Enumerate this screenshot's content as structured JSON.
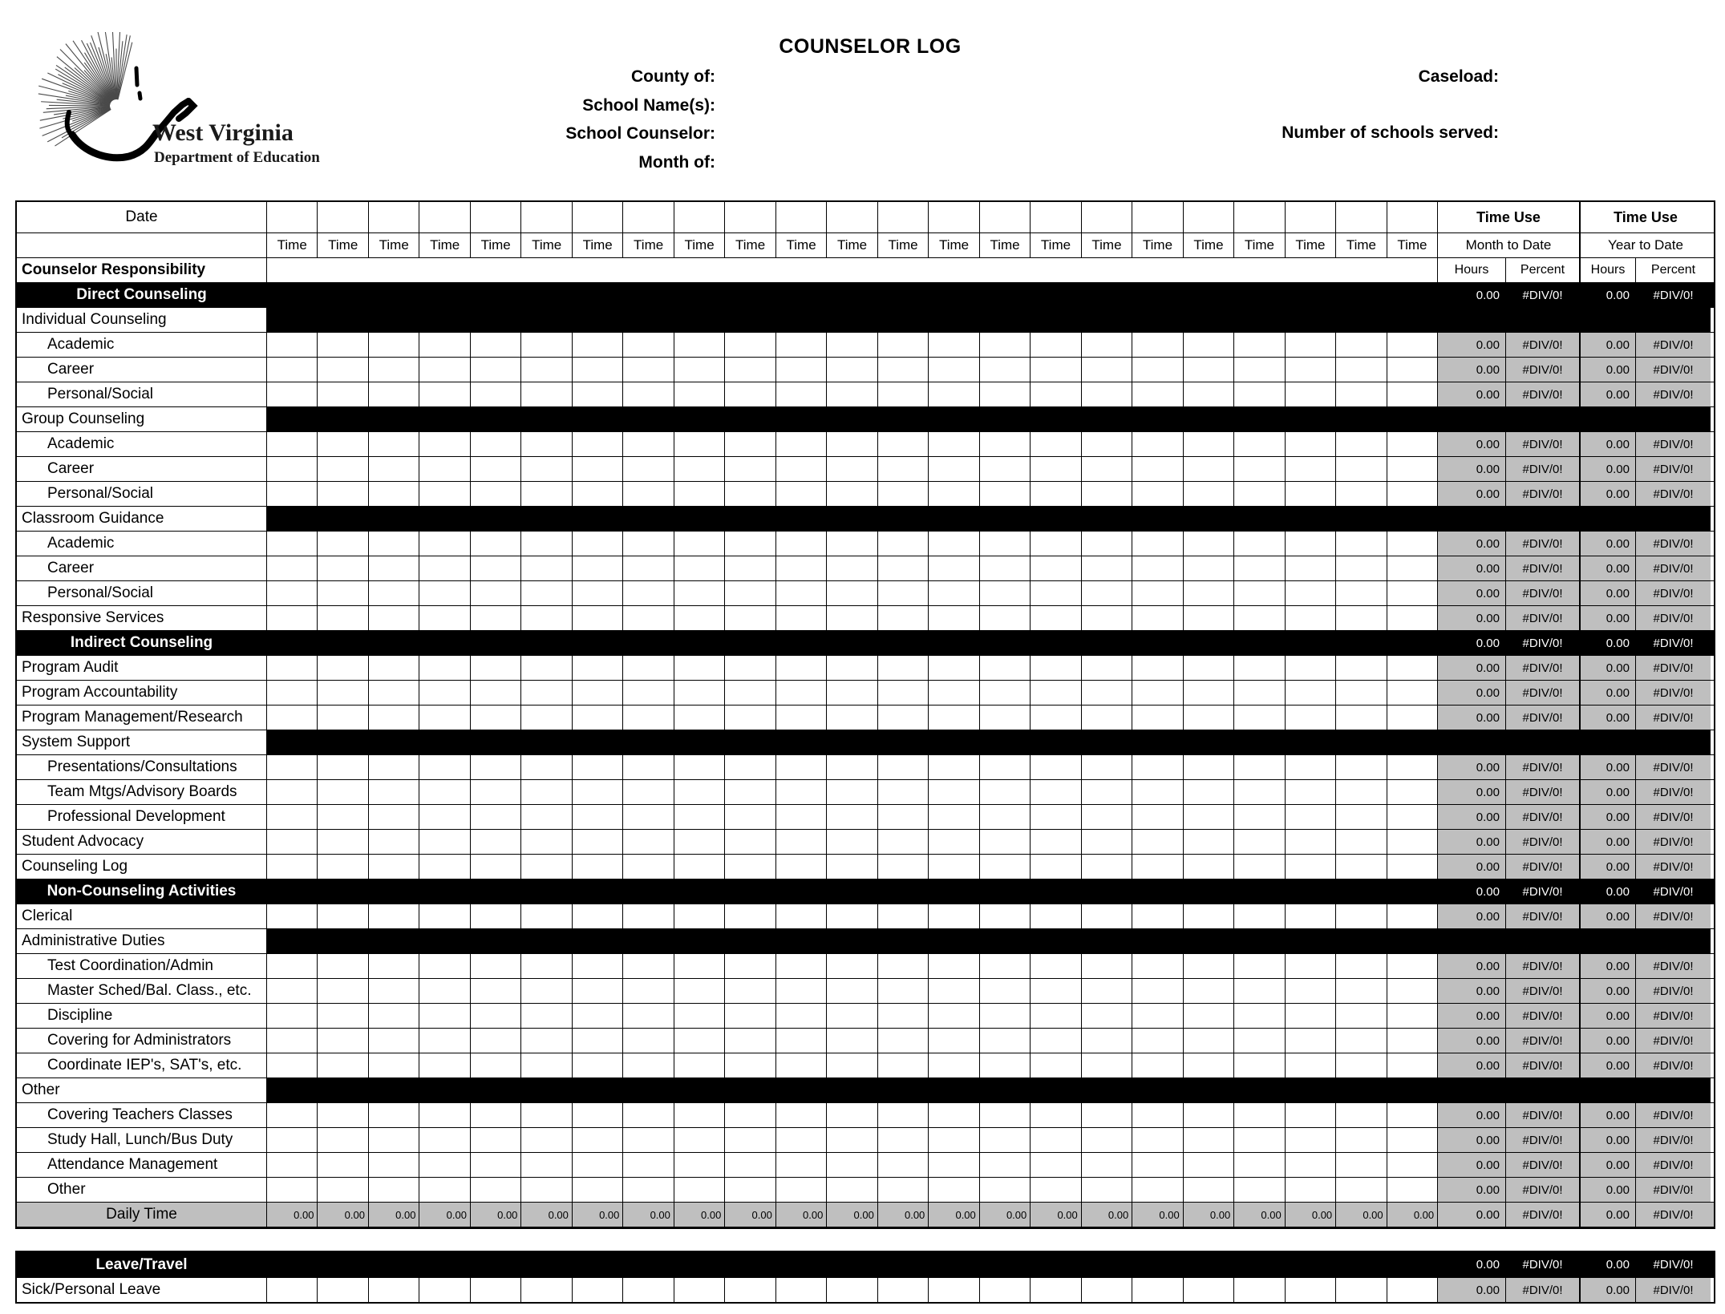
{
  "page": {
    "title": "COUNSELOR LOG",
    "logo": {
      "region": "West Virginia",
      "org": "Department of Education"
    },
    "fields_left": [
      "County of:",
      "School Name(s):",
      "School Counselor:",
      "Month of:"
    ],
    "fields_right": [
      "Caseload:",
      "Number of schools served:"
    ]
  },
  "table": {
    "columns": {
      "date_label": "Date",
      "time_label": "Time",
      "time_column_count": 23
    },
    "time_use": {
      "title": "Time Use",
      "mtd": "Month to Date",
      "ytd": "Year to Date",
      "hours": "Hours",
      "percent": "Percent"
    },
    "responsibility_label": "Counselor Responsibility",
    "rows": [
      {
        "label": "Direct Counseling",
        "type": "section",
        "indent": false,
        "mtd_hours": "0.00",
        "mtd_percent": "#DIV/0!",
        "ytd_hours": "0.00",
        "ytd_percent": "#DIV/0!"
      },
      {
        "label": "Individual Counseling",
        "type": "category",
        "indent": false
      },
      {
        "label": "Academic",
        "type": "data",
        "indent": true,
        "mtd_hours": "0.00",
        "mtd_percent": "#DIV/0!",
        "ytd_hours": "0.00",
        "ytd_percent": "#DIV/0!"
      },
      {
        "label": "Career",
        "type": "data",
        "indent": true,
        "mtd_hours": "0.00",
        "mtd_percent": "#DIV/0!",
        "ytd_hours": "0.00",
        "ytd_percent": "#DIV/0!"
      },
      {
        "label": "Personal/Social",
        "type": "data",
        "indent": true,
        "mtd_hours": "0.00",
        "mtd_percent": "#DIV/0!",
        "ytd_hours": "0.00",
        "ytd_percent": "#DIV/0!"
      },
      {
        "label": "Group Counseling",
        "type": "category",
        "indent": false
      },
      {
        "label": "Academic",
        "type": "data",
        "indent": true,
        "mtd_hours": "0.00",
        "mtd_percent": "#DIV/0!",
        "ytd_hours": "0.00",
        "ytd_percent": "#DIV/0!"
      },
      {
        "label": "Career",
        "type": "data",
        "indent": true,
        "mtd_hours": "0.00",
        "mtd_percent": "#DIV/0!",
        "ytd_hours": "0.00",
        "ytd_percent": "#DIV/0!"
      },
      {
        "label": "Personal/Social",
        "type": "data",
        "indent": true,
        "mtd_hours": "0.00",
        "mtd_percent": "#DIV/0!",
        "ytd_hours": "0.00",
        "ytd_percent": "#DIV/0!"
      },
      {
        "label": "Classroom Guidance",
        "type": "category",
        "indent": false
      },
      {
        "label": "Academic",
        "type": "data",
        "indent": true,
        "mtd_hours": "0.00",
        "mtd_percent": "#DIV/0!",
        "ytd_hours": "0.00",
        "ytd_percent": "#DIV/0!"
      },
      {
        "label": "Career",
        "type": "data",
        "indent": true,
        "mtd_hours": "0.00",
        "mtd_percent": "#DIV/0!",
        "ytd_hours": "0.00",
        "ytd_percent": "#DIV/0!"
      },
      {
        "label": "Personal/Social",
        "type": "data",
        "indent": true,
        "mtd_hours": "0.00",
        "mtd_percent": "#DIV/0!",
        "ytd_hours": "0.00",
        "ytd_percent": "#DIV/0!"
      },
      {
        "label": "Responsive Services",
        "type": "data",
        "indent": false,
        "mtd_hours": "0.00",
        "mtd_percent": "#DIV/0!",
        "ytd_hours": "0.00",
        "ytd_percent": "#DIV/0!"
      },
      {
        "label": "Indirect Counseling",
        "type": "section",
        "indent": false,
        "mtd_hours": "0.00",
        "mtd_percent": "#DIV/0!",
        "ytd_hours": "0.00",
        "ytd_percent": "#DIV/0!"
      },
      {
        "label": "Program Audit",
        "type": "data",
        "indent": false,
        "mtd_hours": "0.00",
        "mtd_percent": "#DIV/0!",
        "ytd_hours": "0.00",
        "ytd_percent": "#DIV/0!"
      },
      {
        "label": "Program Accountability",
        "type": "data",
        "indent": false,
        "mtd_hours": "0.00",
        "mtd_percent": "#DIV/0!",
        "ytd_hours": "0.00",
        "ytd_percent": "#DIV/0!"
      },
      {
        "label": "Program Management/Research",
        "type": "data",
        "indent": false,
        "mtd_hours": "0.00",
        "mtd_percent": "#DIV/0!",
        "ytd_hours": "0.00",
        "ytd_percent": "#DIV/0!"
      },
      {
        "label": "System Support",
        "type": "category",
        "indent": false
      },
      {
        "label": "Presentations/Consultations",
        "type": "data",
        "indent": true,
        "mtd_hours": "0.00",
        "mtd_percent": "#DIV/0!",
        "ytd_hours": "0.00",
        "ytd_percent": "#DIV/0!"
      },
      {
        "label": "Team Mtgs/Advisory Boards",
        "type": "data",
        "indent": true,
        "mtd_hours": "0.00",
        "mtd_percent": "#DIV/0!",
        "ytd_hours": "0.00",
        "ytd_percent": "#DIV/0!"
      },
      {
        "label": "Professional Development",
        "type": "data",
        "indent": true,
        "mtd_hours": "0.00",
        "mtd_percent": "#DIV/0!",
        "ytd_hours": "0.00",
        "ytd_percent": "#DIV/0!"
      },
      {
        "label": "Student Advocacy",
        "type": "data",
        "indent": false,
        "mtd_hours": "0.00",
        "mtd_percent": "#DIV/0!",
        "ytd_hours": "0.00",
        "ytd_percent": "#DIV/0!"
      },
      {
        "label": "Counseling Log",
        "type": "data",
        "indent": false,
        "mtd_hours": "0.00",
        "mtd_percent": "#DIV/0!",
        "ytd_hours": "0.00",
        "ytd_percent": "#DIV/0!"
      },
      {
        "label": "Non-Counseling Activities",
        "type": "section",
        "indent": false,
        "mtd_hours": "0.00",
        "mtd_percent": "#DIV/0!",
        "ytd_hours": "0.00",
        "ytd_percent": "#DIV/0!"
      },
      {
        "label": "Clerical",
        "type": "data",
        "indent": false,
        "mtd_hours": "0.00",
        "mtd_percent": "#DIV/0!",
        "ytd_hours": "0.00",
        "ytd_percent": "#DIV/0!"
      },
      {
        "label": "Administrative Duties",
        "type": "category",
        "indent": false
      },
      {
        "label": "Test Coordination/Admin",
        "type": "data",
        "indent": true,
        "mtd_hours": "0.00",
        "mtd_percent": "#DIV/0!",
        "ytd_hours": "0.00",
        "ytd_percent": "#DIV/0!"
      },
      {
        "label": "Master Sched/Bal. Class., etc.",
        "type": "data",
        "indent": true,
        "mtd_hours": "0.00",
        "mtd_percent": "#DIV/0!",
        "ytd_hours": "0.00",
        "ytd_percent": "#DIV/0!"
      },
      {
        "label": "Discipline",
        "type": "data",
        "indent": true,
        "mtd_hours": "0.00",
        "mtd_percent": "#DIV/0!",
        "ytd_hours": "0.00",
        "ytd_percent": "#DIV/0!"
      },
      {
        "label": "Covering for Administrators",
        "type": "data",
        "indent": true,
        "mtd_hours": "0.00",
        "mtd_percent": "#DIV/0!",
        "ytd_hours": "0.00",
        "ytd_percent": "#DIV/0!"
      },
      {
        "label": "Coordinate IEP's, SAT's, etc.",
        "type": "data",
        "indent": true,
        "mtd_hours": "0.00",
        "mtd_percent": "#DIV/0!",
        "ytd_hours": "0.00",
        "ytd_percent": "#DIV/0!"
      },
      {
        "label": "Other",
        "type": "category",
        "indent": false
      },
      {
        "label": "Covering Teachers Classes",
        "type": "data",
        "indent": true,
        "mtd_hours": "0.00",
        "mtd_percent": "#DIV/0!",
        "ytd_hours": "0.00",
        "ytd_percent": "#DIV/0!"
      },
      {
        "label": "Study Hall, Lunch/Bus Duty",
        "type": "data",
        "indent": true,
        "mtd_hours": "0.00",
        "mtd_percent": "#DIV/0!",
        "ytd_hours": "0.00",
        "ytd_percent": "#DIV/0!"
      },
      {
        "label": "Attendance Management",
        "type": "data",
        "indent": true,
        "mtd_hours": "0.00",
        "mtd_percent": "#DIV/0!",
        "ytd_hours": "0.00",
        "ytd_percent": "#DIV/0!"
      },
      {
        "label": "Other",
        "type": "data",
        "indent": true,
        "mtd_hours": "0.00",
        "mtd_percent": "#DIV/0!",
        "ytd_hours": "0.00",
        "ytd_percent": "#DIV/0!"
      }
    ],
    "daily": {
      "label": "Daily Time",
      "cell_values": [
        "0.00",
        "0.00",
        "0.00",
        "0.00",
        "0.00",
        "0.00",
        "0.00",
        "0.00",
        "0.00",
        "0.00",
        "0.00",
        "0.00",
        "0.00",
        "0.00",
        "0.00",
        "0.00",
        "0.00",
        "0.00",
        "0.00",
        "0.00",
        "0.00",
        "0.00",
        "0.00"
      ],
      "mtd_hours": "0.00",
      "mtd_percent": "#DIV/0!",
      "ytd_hours": "0.00",
      "ytd_percent": "#DIV/0!"
    },
    "leave_rows": [
      {
        "label": "Leave/Travel",
        "type": "section",
        "indent": false,
        "mtd_hours": "0.00",
        "mtd_percent": "#DIV/0!",
        "ytd_hours": "0.00",
        "ytd_percent": "#DIV/0!"
      },
      {
        "label": "Sick/Personal Leave",
        "type": "data",
        "indent": false,
        "mtd_hours": "0.00",
        "mtd_percent": "#DIV/0!",
        "ytd_hours": "0.00",
        "ytd_percent": "#DIV/0!"
      }
    ]
  },
  "colors": {
    "value_cell_grey": "#bfbfbf",
    "section_black": "#000000",
    "paper_white": "#ffffff"
  }
}
